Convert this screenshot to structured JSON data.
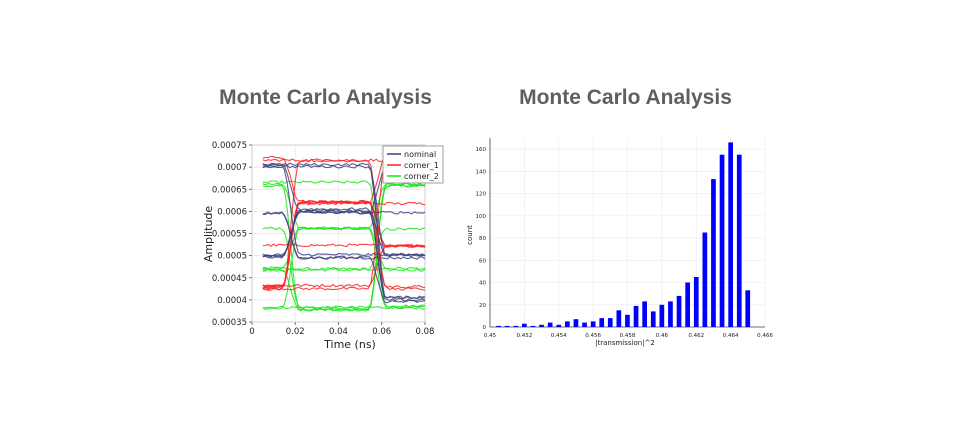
{
  "chart_data": [
    {
      "type": "line",
      "title": "Monte Carlo Analysis",
      "xlabel": "Time (ns)",
      "ylabel": "Amplitude",
      "xlim": [
        0,
        0.08
      ],
      "ylim": [
        0.00035,
        0.00075
      ],
      "x_ticks": [
        "0",
        "0.02",
        "0.04",
        "0.06",
        "0.08"
      ],
      "y_ticks": [
        "0.00035",
        "0.0004",
        "0.00045",
        "0.0005",
        "0.00055",
        "0.0006",
        "0.00065",
        "0.0007",
        "0.00075"
      ],
      "legend_position": "top-right",
      "series": [
        {
          "name": "nominal",
          "color": "#3c3f7f",
          "levels": [
            0.0004,
            0.0005,
            0.0006,
            0.0007
          ]
        },
        {
          "name": "corner_1",
          "color": "#ff2020",
          "levels": [
            0.00043,
            0.00052,
            0.00062,
            0.00072
          ]
        },
        {
          "name": "corner_2",
          "color": "#19e619",
          "levels": [
            0.00038,
            0.00047,
            0.00056,
            0.00066
          ]
        }
      ],
      "transitions_x": [
        0.018,
        0.058
      ]
    },
    {
      "type": "bar",
      "title": "Monte Carlo Analysis",
      "xlabel": "|transmission|^2",
      "ylabel": "count",
      "xlim": [
        0.45,
        0.466
      ],
      "ylim": [
        0,
        170
      ],
      "x_ticks": [
        "0.45",
        "0.452",
        "0.454",
        "0.456",
        "0.458",
        "0.46",
        "0.462",
        "0.464",
        "0.466"
      ],
      "y_ticks": [
        "0",
        "20",
        "40",
        "60",
        "80",
        "100",
        "120",
        "140",
        "160"
      ],
      "color": "#0000ff",
      "x": [
        0.4505,
        0.451,
        0.4515,
        0.452,
        0.4525,
        0.453,
        0.4535,
        0.454,
        0.4545,
        0.455,
        0.4555,
        0.456,
        0.4565,
        0.457,
        0.4575,
        0.458,
        0.4585,
        0.459,
        0.4595,
        0.46,
        0.4605,
        0.461,
        0.4615,
        0.462,
        0.4625,
        0.463,
        0.4635,
        0.464,
        0.4645,
        0.465,
        0.4655
      ],
      "values": [
        1,
        1,
        1,
        3,
        1,
        2,
        4,
        2,
        5,
        7,
        4,
        5,
        8,
        8,
        15,
        11,
        19,
        23,
        14,
        20,
        23,
        28,
        40,
        45,
        85,
        133,
        155,
        166,
        155,
        33,
        0
      ]
    }
  ]
}
